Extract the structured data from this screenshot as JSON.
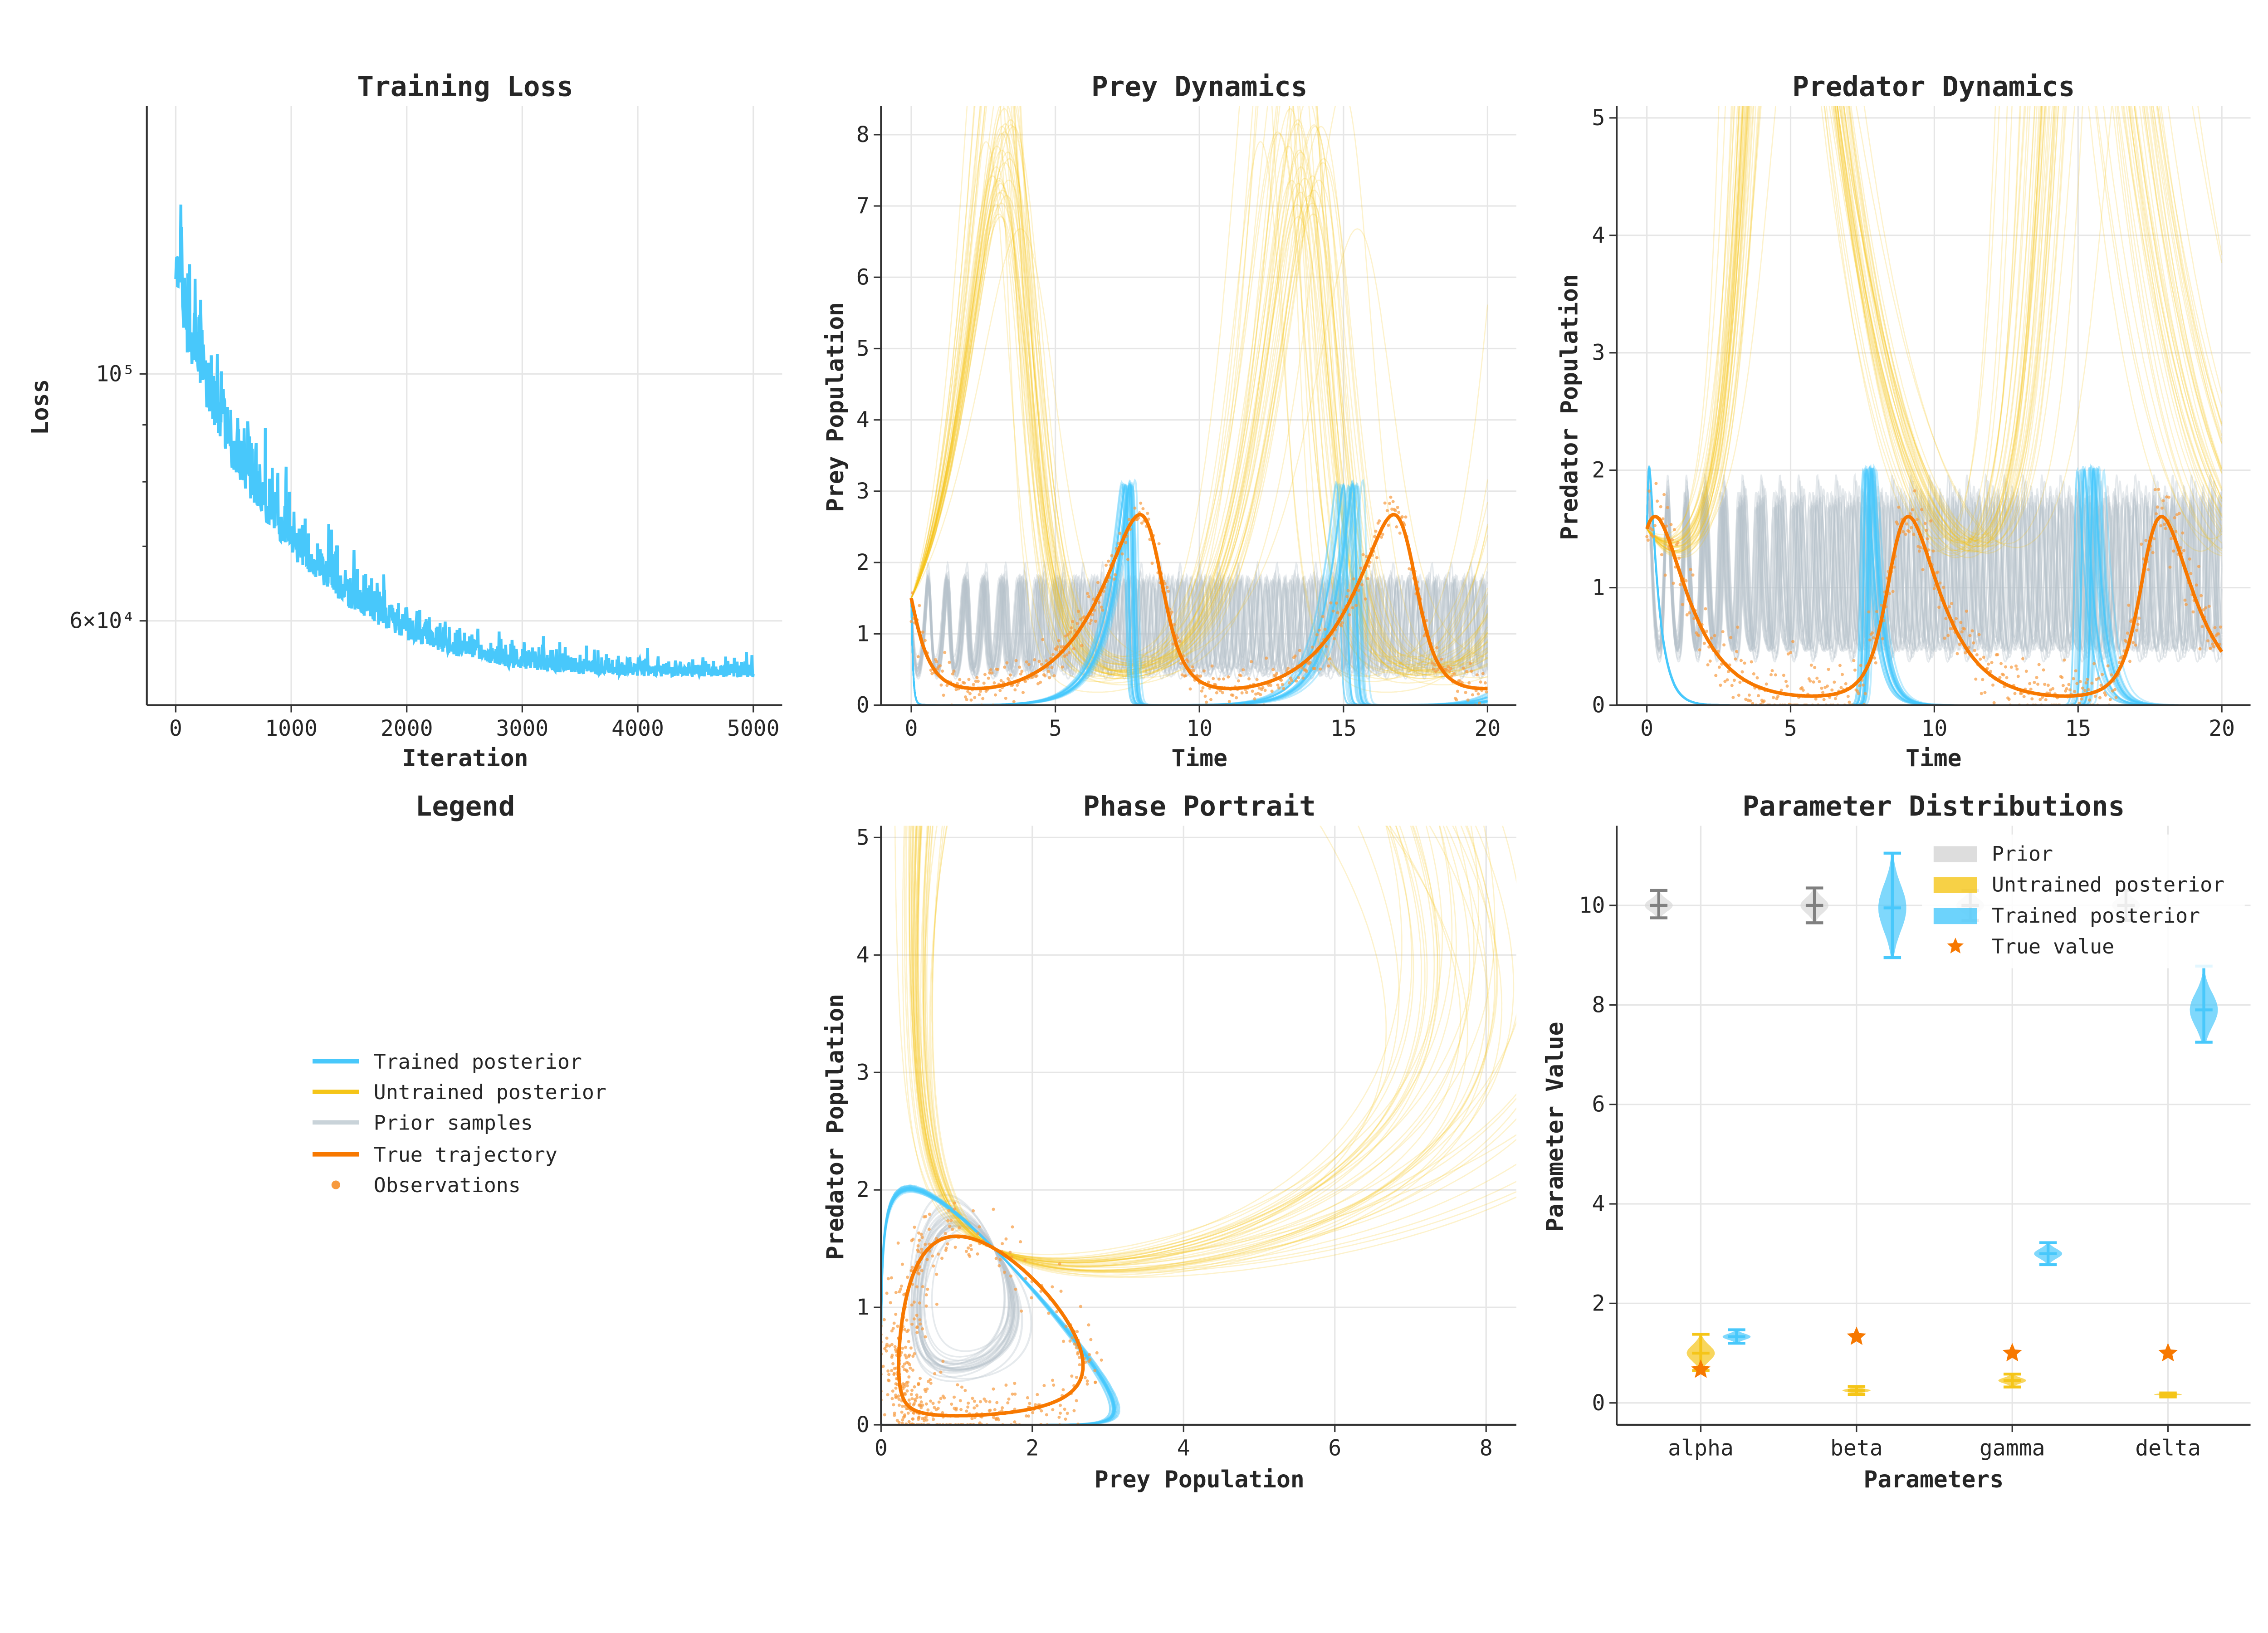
{
  "colors": {
    "trained": "#48c8fb",
    "untrained": "#f5c518",
    "prior": "#b8c4cc",
    "true": "#f77800",
    "observations": "#f79a3e",
    "prior_violin": "#808080"
  },
  "legend_panel": {
    "title": "Legend",
    "items": [
      {
        "label": "Trained posterior",
        "color": "#48c8fb",
        "kind": "line"
      },
      {
        "label": "Untrained posterior",
        "color": "#f5c518",
        "kind": "line"
      },
      {
        "label": "Prior samples",
        "color": "#c9d3d9",
        "kind": "line"
      },
      {
        "label": "True trajectory",
        "color": "#f77800",
        "kind": "line"
      },
      {
        "label": "Observations",
        "color": "#f79a3e",
        "kind": "dot"
      }
    ]
  },
  "chart_data": [
    {
      "id": "loss",
      "type": "line",
      "title": "Training Loss",
      "xlabel": "Iteration",
      "ylabel": "Loss",
      "xscale": "linear",
      "yscale": "log",
      "xlim": [
        -250,
        5250
      ],
      "ylim": [
        50400,
        174000
      ],
      "xticks": [
        0,
        1000,
        2000,
        3000,
        4000,
        5000
      ],
      "xticklabels": [
        "0",
        "1000",
        "2000",
        "3000",
        "4000",
        "5000"
      ],
      "yticks": [
        100000,
        60000
      ],
      "yticklabels": [
        "10⁵",
        "6×10⁴"
      ],
      "series": [
        {
          "name": "Loss",
          "x": [
            0,
            100,
            250,
            500,
            750,
            1000,
            1500,
            2000,
            2500,
            3000,
            3500,
            4000,
            4500,
            5000
          ],
          "y": [
            125000,
            108000,
            97000,
            84000,
            76000,
            70000,
            62500,
            58500,
            56000,
            54800,
            54200,
            53900,
            53800,
            53700
          ]
        }
      ]
    },
    {
      "id": "prey",
      "type": "line",
      "title": "Prey Dynamics",
      "xlabel": "Time",
      "ylabel": "Prey Population",
      "xlim": [
        -1.05,
        21
      ],
      "ylim": [
        0,
        8.4
      ],
      "xticks": [
        0,
        5,
        10,
        15,
        20
      ],
      "xticklabels": [
        "0",
        "5",
        "10",
        "15",
        "20"
      ],
      "yticks": [
        0,
        1,
        2,
        3,
        4,
        5,
        6,
        7,
        8
      ],
      "yticklabels": [
        "0",
        "1",
        "2",
        "3",
        "4",
        "5",
        "6",
        "7",
        "8"
      ]
    },
    {
      "id": "predator",
      "type": "line",
      "title": "Predator Dynamics",
      "xlabel": "Time",
      "ylabel": "Predator Population",
      "xlim": [
        -1.05,
        21
      ],
      "ylim": [
        0,
        5.1
      ],
      "xticks": [
        0,
        5,
        10,
        15,
        20
      ],
      "xticklabels": [
        "0",
        "5",
        "10",
        "15",
        "20"
      ],
      "yticks": [
        0,
        1,
        2,
        3,
        4,
        5
      ],
      "yticklabels": [
        "0",
        "1",
        "2",
        "3",
        "4",
        "5"
      ]
    },
    {
      "id": "phase",
      "type": "line",
      "title": "Phase Portrait",
      "xlabel": "Prey Population",
      "ylabel": "Predator Population",
      "xlim": [
        0,
        8.4
      ],
      "ylim": [
        0,
        5.1
      ],
      "xticks": [
        0,
        2,
        4,
        6,
        8
      ],
      "xticklabels": [
        "0",
        "2",
        "4",
        "6",
        "8"
      ],
      "yticks": [
        0,
        1,
        2,
        3,
        4,
        5
      ],
      "yticklabels": [
        "0",
        "1",
        "2",
        "3",
        "4",
        "5"
      ]
    },
    {
      "id": "params",
      "type": "violin",
      "title": "Parameter Distributions",
      "xlabel": "Parameters",
      "ylabel": "Parameter Value",
      "xlim": [
        -0.54,
        3.53
      ],
      "ylim": [
        -0.44,
        11.6
      ],
      "categories": [
        "alpha",
        "beta",
        "gamma",
        "delta"
      ],
      "yticks": [
        0,
        2,
        4,
        6,
        8,
        10
      ],
      "yticklabels": [
        "0",
        "2",
        "4",
        "6",
        "8",
        "10"
      ],
      "legend": [
        "Prior",
        "Untrained posterior",
        "Trained posterior",
        "True value"
      ],
      "legend_position": "top-right",
      "series": [
        {
          "name": "Prior",
          "color": "#808080",
          "offset": -0.27,
          "mean": [
            10,
            10,
            10,
            10
          ],
          "min": [
            9.75,
            9.65,
            9.7,
            9.7
          ],
          "max": [
            10.3,
            10.35,
            10.3,
            10.3
          ]
        },
        {
          "name": "Untrained posterior",
          "color": "#f5c518",
          "offset": 0,
          "mean": [
            1.0,
            0.25,
            0.45,
            0.17
          ],
          "min": [
            0.65,
            0.17,
            0.32,
            0.12
          ],
          "max": [
            1.38,
            0.33,
            0.58,
            0.2
          ]
        },
        {
          "name": "Trained posterior",
          "color": "#48c8fb",
          "offset": 0.23,
          "mean": [
            1.33,
            9.95,
            3.0,
            7.9
          ],
          "min": [
            1.2,
            8.95,
            2.78,
            7.25
          ],
          "max": [
            1.47,
            11.05,
            3.22,
            8.78
          ]
        }
      ],
      "true_values": [
        0.67,
        1.33,
        1.0,
        1.0
      ]
    }
  ],
  "simulation": {
    "t_end": 20,
    "initial": [
      1.5,
      1.5
    ],
    "true_params": [
      0.67,
      1.33,
      1.0,
      1.0
    ],
    "trained_params": [
      1.33,
      9.95,
      3.0,
      7.9
    ],
    "untrained_params": [
      1.0,
      0.25,
      0.45,
      0.17
    ],
    "prior_params": [
      10,
      10,
      10,
      10
    ],
    "observation_noise": 0.15,
    "n_observations": 500
  }
}
